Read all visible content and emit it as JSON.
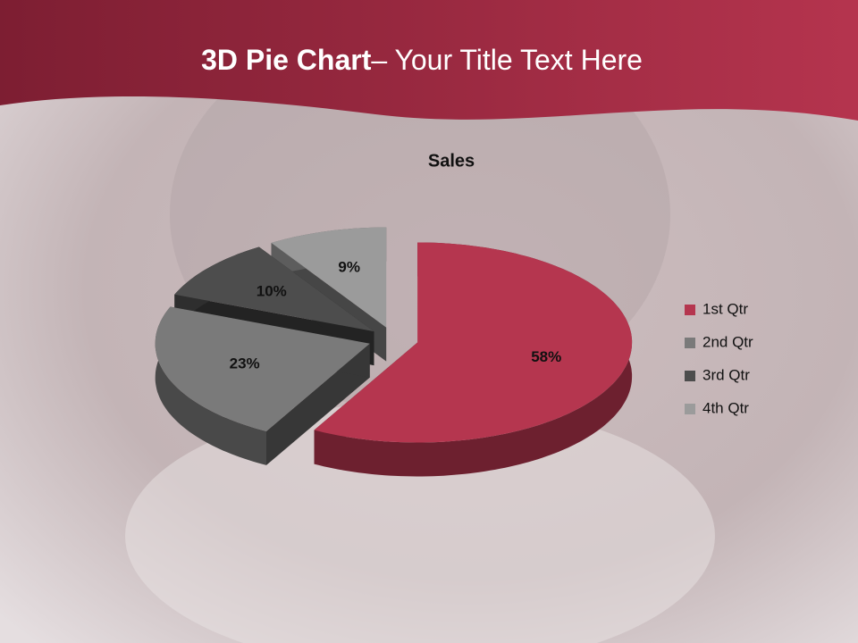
{
  "slide": {
    "title_bold": "3D Pie Chart",
    "title_rest": "– Your Title Text Here"
  },
  "chart_data": {
    "type": "pie3d",
    "title": "Sales",
    "categories": [
      "1st Qtr",
      "2nd Qtr",
      "3rd Qtr",
      "4th Qtr"
    ],
    "values": [
      58,
      23,
      10,
      9
    ],
    "value_labels": [
      "58%",
      "23%",
      "10%",
      "9%"
    ],
    "colors": [
      "#b5364f",
      "#7a7a7a",
      "#4d4d4d",
      "#9b9b9b"
    ],
    "legend": "right"
  }
}
